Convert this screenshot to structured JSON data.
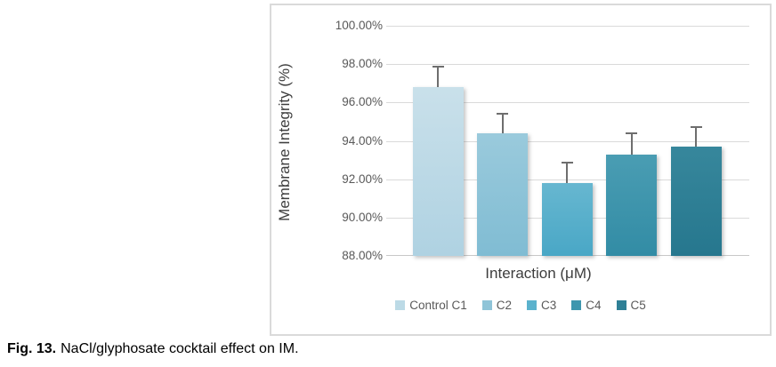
{
  "caption": {
    "label": "Fig. 13.",
    "text": "NaCl/glyphosate cocktail effect on IM."
  },
  "chart_data": {
    "type": "bar",
    "title": "",
    "xlabel": "Interaction (μM)",
    "ylabel": "Membrane Integrity (%)",
    "ylim": [
      88,
      100
    ],
    "grid": true,
    "legend_position": "bottom",
    "yticks": [
      {
        "value": 100,
        "label": "100.00%"
      },
      {
        "value": 98,
        "label": "98.00%"
      },
      {
        "value": 96,
        "label": "96.00%"
      },
      {
        "value": 94,
        "label": "94.00%"
      },
      {
        "value": 92,
        "label": "92.00%"
      },
      {
        "value": 90,
        "label": "90.00%"
      },
      {
        "value": 88,
        "label": "88.00%"
      }
    ],
    "categories": [
      "Control C1",
      "C2",
      "C3",
      "C4",
      "C5"
    ],
    "bars": [
      {
        "name": "Control C1",
        "value": 96.8,
        "error_plus": 1.05,
        "color": "#bcdae6",
        "color_top": "#c9e0ea",
        "color_bottom": "#afd2e2"
      },
      {
        "name": "C2",
        "value": 94.4,
        "error_plus": 1.0,
        "color": "#8fc4d8",
        "color_top": "#9acadc",
        "color_bottom": "#80bcd3"
      },
      {
        "name": "C3",
        "value": 91.8,
        "error_plus": 1.05,
        "color": "#5bb2cd",
        "color_top": "#67b7d0",
        "color_bottom": "#49a7c6"
      },
      {
        "name": "C4",
        "value": 93.3,
        "error_plus": 1.1,
        "color": "#3e96ae",
        "color_top": "#4a9db3",
        "color_bottom": "#328ca5"
      },
      {
        "name": "C5",
        "value": 93.7,
        "error_plus": 1.0,
        "color": "#2f8096",
        "color_top": "#37879c",
        "color_bottom": "#26778e"
      }
    ],
    "colors": {
      "gridline": "#dadada",
      "axis_line": "#c8c8c8",
      "error_bar": "#6e6e6e",
      "tick_label": "#595959",
      "axis_title": "#3d3d3d",
      "legend_text": "#595959",
      "chart_border": "#dadada"
    }
  }
}
